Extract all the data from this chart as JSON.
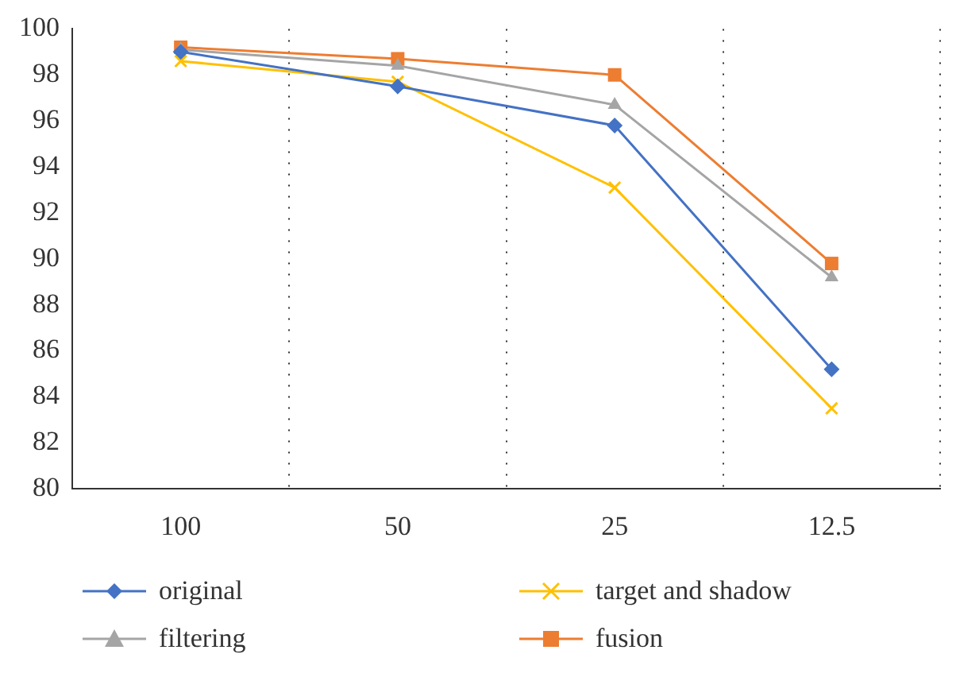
{
  "chart_data": {
    "type": "line",
    "categories": [
      "100",
      "50",
      "25",
      "12.5"
    ],
    "series": [
      {
        "name": "original",
        "color": "#4472c4",
        "marker": "diamond",
        "values": [
          99.0,
          97.5,
          95.8,
          85.2
        ]
      },
      {
        "name": "target and shadow",
        "color": "#ffc000",
        "marker": "cross",
        "values": [
          98.6,
          97.7,
          93.1,
          83.5
        ]
      },
      {
        "name": "filtering",
        "color": "#a5a5a5",
        "marker": "triangle",
        "values": [
          99.1,
          98.4,
          96.7,
          89.2
        ]
      },
      {
        "name": "fusion",
        "color": "#ed7d31",
        "marker": "square",
        "values": [
          99.2,
          98.7,
          98.0,
          89.8
        ]
      }
    ],
    "ylim": [
      80,
      100
    ],
    "yticks": [
      80,
      82,
      84,
      86,
      88,
      90,
      92,
      94,
      96,
      98,
      100
    ],
    "grid": "x",
    "legend": "bottom"
  }
}
